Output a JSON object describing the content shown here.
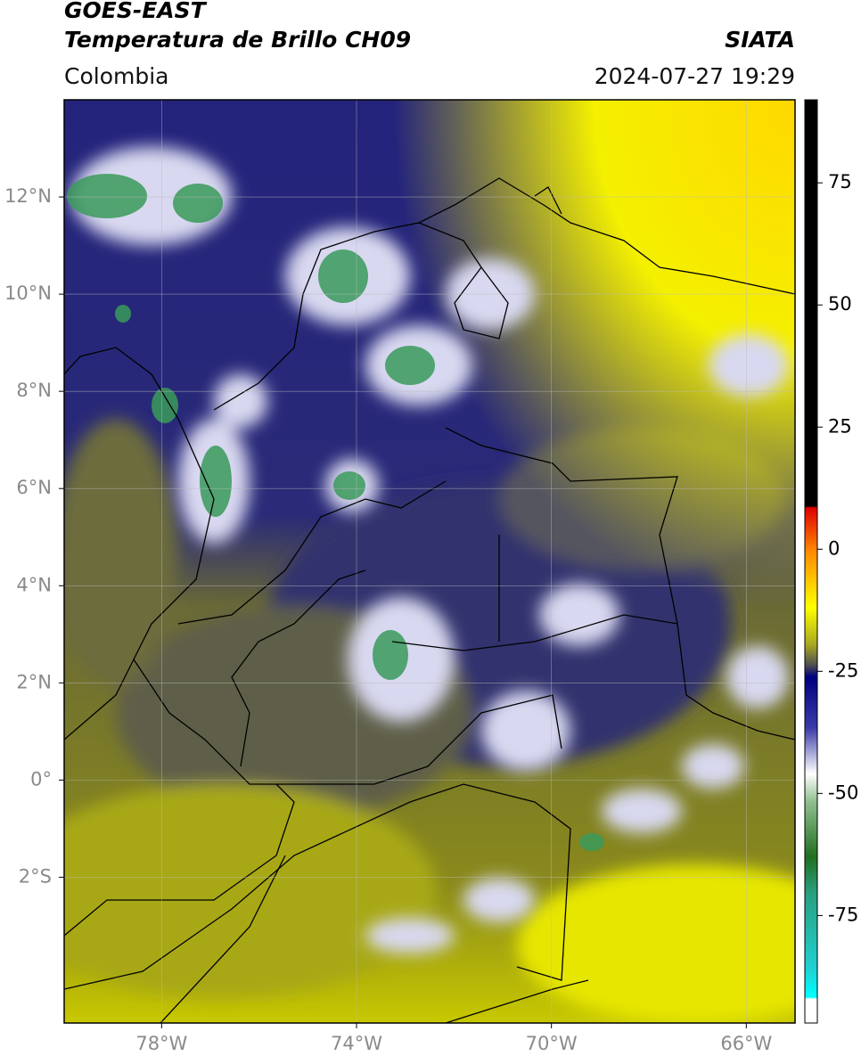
{
  "chart_data": {
    "type": "map",
    "title": "GOES-EAST",
    "subtitle": "Temperatura de Brillo CH09",
    "source": "SIATA",
    "region": "Colombia",
    "datetime": "2024-07-27 19:29",
    "xlim": [
      -80,
      -65
    ],
    "ylim": [
      -5,
      14
    ],
    "xticks": [
      {
        "value": -78,
        "label": "78°W"
      },
      {
        "value": -74,
        "label": "74°W"
      },
      {
        "value": -70,
        "label": "70°W"
      },
      {
        "value": -66,
        "label": "66°W"
      }
    ],
    "yticks": [
      {
        "value": 12,
        "label": "12°N"
      },
      {
        "value": 10,
        "label": "10°N"
      },
      {
        "value": 8,
        "label": "8°N"
      },
      {
        "value": 6,
        "label": "6°N"
      },
      {
        "value": 4,
        "label": "4°N"
      },
      {
        "value": 2,
        "label": "2°N"
      },
      {
        "value": 0,
        "label": "0°"
      },
      {
        "value": -2,
        "label": "2°S"
      }
    ],
    "grid": true,
    "colorbar": {
      "lim": [
        -97,
        92
      ],
      "ticks": [
        75,
        50,
        25,
        0,
        -25,
        -50,
        -75
      ]
    }
  }
}
